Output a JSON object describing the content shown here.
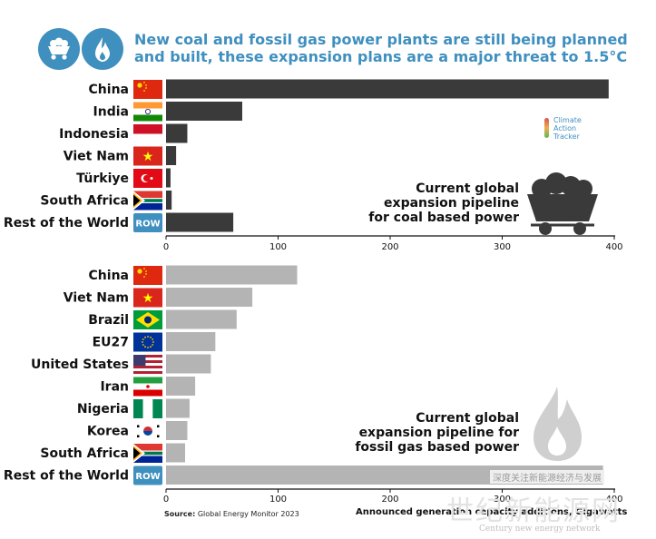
{
  "title": {
    "line1": "New coal and fossil gas power plants are still being planned",
    "line2": "and built, these expansion plans are a major threat to 1.5°C"
  },
  "icons": [
    "coal-cart-icon",
    "flame-icon"
  ],
  "colors": {
    "accent": "#3f8fbf",
    "coal_bar": "#3a3a3a",
    "gas_bar": "#b4b4b4"
  },
  "logo": {
    "line1": "Climate",
    "line2": "Action",
    "line3": "Tracker"
  },
  "source": {
    "label": "Source:",
    "text": "Global Energy Monitor 2023"
  },
  "axis_note": "Announced generation capacity additions, Gigawatts",
  "watermark": {
    "text": "深度关注新能源经济与发展",
    "big": "世纪新能源网",
    "sub": "Century new energy network"
  },
  "chart_data": [
    {
      "type": "bar",
      "orientation": "horizontal",
      "title": "",
      "annotation": [
        "Current global",
        "expansion pipeline",
        "for coal based power"
      ],
      "categories": [
        "China",
        "India",
        "Indonesia",
        "Viet Nam",
        "Türkiye",
        "South Africa",
        "Rest of the World"
      ],
      "flags": [
        "CN",
        "IN",
        "ID",
        "VN",
        "TR",
        "ZA",
        "ROW"
      ],
      "values": [
        395,
        68,
        19,
        9,
        4,
        5,
        60
      ],
      "xlim": [
        0,
        400
      ],
      "xticks": [
        0,
        100,
        200,
        300,
        400
      ],
      "xlabel": "",
      "ylabel": "",
      "color": "#3a3a3a",
      "grid": false
    },
    {
      "type": "bar",
      "orientation": "horizontal",
      "title": "",
      "annotation": [
        "Current global",
        "expansion pipeline for",
        "fossil gas based power"
      ],
      "categories": [
        "China",
        "Viet Nam",
        "Brazil",
        "EU27",
        "United States",
        "Iran",
        "Nigeria",
        "Korea",
        "South Africa",
        "Rest of the World"
      ],
      "flags": [
        "CN",
        "VN",
        "BR",
        "EU",
        "US",
        "IR",
        "NG",
        "KR",
        "ZA",
        "ROW"
      ],
      "values": [
        117,
        77,
        63,
        44,
        40,
        26,
        21,
        19,
        17,
        390
      ],
      "xlim": [
        0,
        400
      ],
      "xticks": [
        0,
        100,
        200,
        300,
        400
      ],
      "xlabel": "Announced generation capacity additions, Gigawatts",
      "ylabel": "",
      "color": "#b4b4b4",
      "grid": false
    }
  ]
}
